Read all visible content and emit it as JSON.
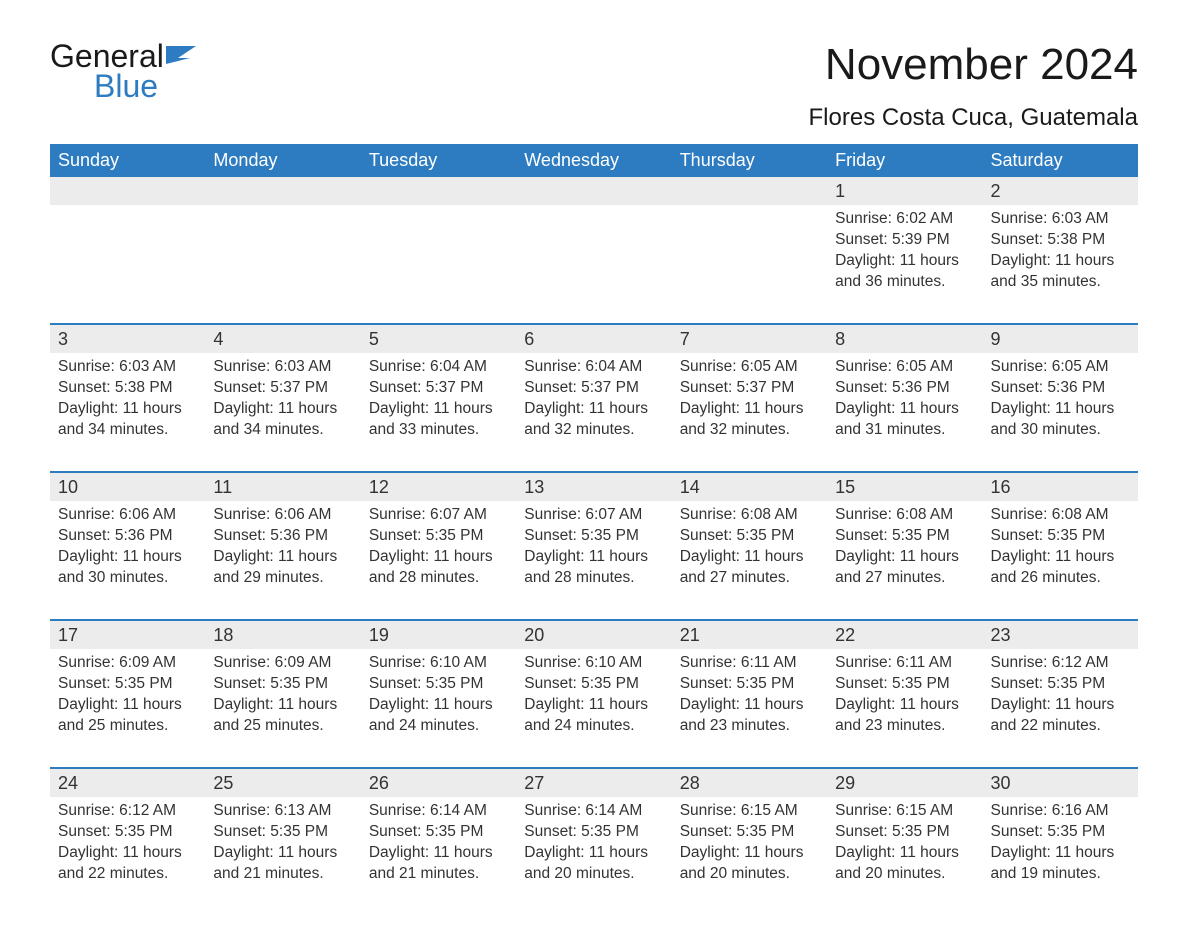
{
  "logo": {
    "general": "General",
    "blue": "Blue"
  },
  "title": "November 2024",
  "location": "Flores Costa Cuca, Guatemala",
  "colors": {
    "header_bg": "#2d7cc1",
    "header_text": "#ffffff",
    "daynum_bg": "#ececec",
    "text": "#333333",
    "rule": "#2d7cc1",
    "logo_blue": "#2d7cc1"
  },
  "typography": {
    "title_fontsize": 44,
    "location_fontsize": 24,
    "weekday_fontsize": 18,
    "daynum_fontsize": 18,
    "body_fontsize": 15.5
  },
  "weekdays": [
    "Sunday",
    "Monday",
    "Tuesday",
    "Wednesday",
    "Thursday",
    "Friday",
    "Saturday"
  ],
  "weeks": [
    [
      {
        "n": "",
        "sr": "",
        "ss": "",
        "dl": ""
      },
      {
        "n": "",
        "sr": "",
        "ss": "",
        "dl": ""
      },
      {
        "n": "",
        "sr": "",
        "ss": "",
        "dl": ""
      },
      {
        "n": "",
        "sr": "",
        "ss": "",
        "dl": ""
      },
      {
        "n": "",
        "sr": "",
        "ss": "",
        "dl": ""
      },
      {
        "n": "1",
        "sr": "Sunrise: 6:02 AM",
        "ss": "Sunset: 5:39 PM",
        "dl": "Daylight: 11 hours and 36 minutes."
      },
      {
        "n": "2",
        "sr": "Sunrise: 6:03 AM",
        "ss": "Sunset: 5:38 PM",
        "dl": "Daylight: 11 hours and 35 minutes."
      }
    ],
    [
      {
        "n": "3",
        "sr": "Sunrise: 6:03 AM",
        "ss": "Sunset: 5:38 PM",
        "dl": "Daylight: 11 hours and 34 minutes."
      },
      {
        "n": "4",
        "sr": "Sunrise: 6:03 AM",
        "ss": "Sunset: 5:37 PM",
        "dl": "Daylight: 11 hours and 34 minutes."
      },
      {
        "n": "5",
        "sr": "Sunrise: 6:04 AM",
        "ss": "Sunset: 5:37 PM",
        "dl": "Daylight: 11 hours and 33 minutes."
      },
      {
        "n": "6",
        "sr": "Sunrise: 6:04 AM",
        "ss": "Sunset: 5:37 PM",
        "dl": "Daylight: 11 hours and 32 minutes."
      },
      {
        "n": "7",
        "sr": "Sunrise: 6:05 AM",
        "ss": "Sunset: 5:37 PM",
        "dl": "Daylight: 11 hours and 32 minutes."
      },
      {
        "n": "8",
        "sr": "Sunrise: 6:05 AM",
        "ss": "Sunset: 5:36 PM",
        "dl": "Daylight: 11 hours and 31 minutes."
      },
      {
        "n": "9",
        "sr": "Sunrise: 6:05 AM",
        "ss": "Sunset: 5:36 PM",
        "dl": "Daylight: 11 hours and 30 minutes."
      }
    ],
    [
      {
        "n": "10",
        "sr": "Sunrise: 6:06 AM",
        "ss": "Sunset: 5:36 PM",
        "dl": "Daylight: 11 hours and 30 minutes."
      },
      {
        "n": "11",
        "sr": "Sunrise: 6:06 AM",
        "ss": "Sunset: 5:36 PM",
        "dl": "Daylight: 11 hours and 29 minutes."
      },
      {
        "n": "12",
        "sr": "Sunrise: 6:07 AM",
        "ss": "Sunset: 5:35 PM",
        "dl": "Daylight: 11 hours and 28 minutes."
      },
      {
        "n": "13",
        "sr": "Sunrise: 6:07 AM",
        "ss": "Sunset: 5:35 PM",
        "dl": "Daylight: 11 hours and 28 minutes."
      },
      {
        "n": "14",
        "sr": "Sunrise: 6:08 AM",
        "ss": "Sunset: 5:35 PM",
        "dl": "Daylight: 11 hours and 27 minutes."
      },
      {
        "n": "15",
        "sr": "Sunrise: 6:08 AM",
        "ss": "Sunset: 5:35 PM",
        "dl": "Daylight: 11 hours and 27 minutes."
      },
      {
        "n": "16",
        "sr": "Sunrise: 6:08 AM",
        "ss": "Sunset: 5:35 PM",
        "dl": "Daylight: 11 hours and 26 minutes."
      }
    ],
    [
      {
        "n": "17",
        "sr": "Sunrise: 6:09 AM",
        "ss": "Sunset: 5:35 PM",
        "dl": "Daylight: 11 hours and 25 minutes."
      },
      {
        "n": "18",
        "sr": "Sunrise: 6:09 AM",
        "ss": "Sunset: 5:35 PM",
        "dl": "Daylight: 11 hours and 25 minutes."
      },
      {
        "n": "19",
        "sr": "Sunrise: 6:10 AM",
        "ss": "Sunset: 5:35 PM",
        "dl": "Daylight: 11 hours and 24 minutes."
      },
      {
        "n": "20",
        "sr": "Sunrise: 6:10 AM",
        "ss": "Sunset: 5:35 PM",
        "dl": "Daylight: 11 hours and 24 minutes."
      },
      {
        "n": "21",
        "sr": "Sunrise: 6:11 AM",
        "ss": "Sunset: 5:35 PM",
        "dl": "Daylight: 11 hours and 23 minutes."
      },
      {
        "n": "22",
        "sr": "Sunrise: 6:11 AM",
        "ss": "Sunset: 5:35 PM",
        "dl": "Daylight: 11 hours and 23 minutes."
      },
      {
        "n": "23",
        "sr": "Sunrise: 6:12 AM",
        "ss": "Sunset: 5:35 PM",
        "dl": "Daylight: 11 hours and 22 minutes."
      }
    ],
    [
      {
        "n": "24",
        "sr": "Sunrise: 6:12 AM",
        "ss": "Sunset: 5:35 PM",
        "dl": "Daylight: 11 hours and 22 minutes."
      },
      {
        "n": "25",
        "sr": "Sunrise: 6:13 AM",
        "ss": "Sunset: 5:35 PM",
        "dl": "Daylight: 11 hours and 21 minutes."
      },
      {
        "n": "26",
        "sr": "Sunrise: 6:14 AM",
        "ss": "Sunset: 5:35 PM",
        "dl": "Daylight: 11 hours and 21 minutes."
      },
      {
        "n": "27",
        "sr": "Sunrise: 6:14 AM",
        "ss": "Sunset: 5:35 PM",
        "dl": "Daylight: 11 hours and 20 minutes."
      },
      {
        "n": "28",
        "sr": "Sunrise: 6:15 AM",
        "ss": "Sunset: 5:35 PM",
        "dl": "Daylight: 11 hours and 20 minutes."
      },
      {
        "n": "29",
        "sr": "Sunrise: 6:15 AM",
        "ss": "Sunset: 5:35 PM",
        "dl": "Daylight: 11 hours and 20 minutes."
      },
      {
        "n": "30",
        "sr": "Sunrise: 6:16 AM",
        "ss": "Sunset: 5:35 PM",
        "dl": "Daylight: 11 hours and 19 minutes."
      }
    ]
  ]
}
